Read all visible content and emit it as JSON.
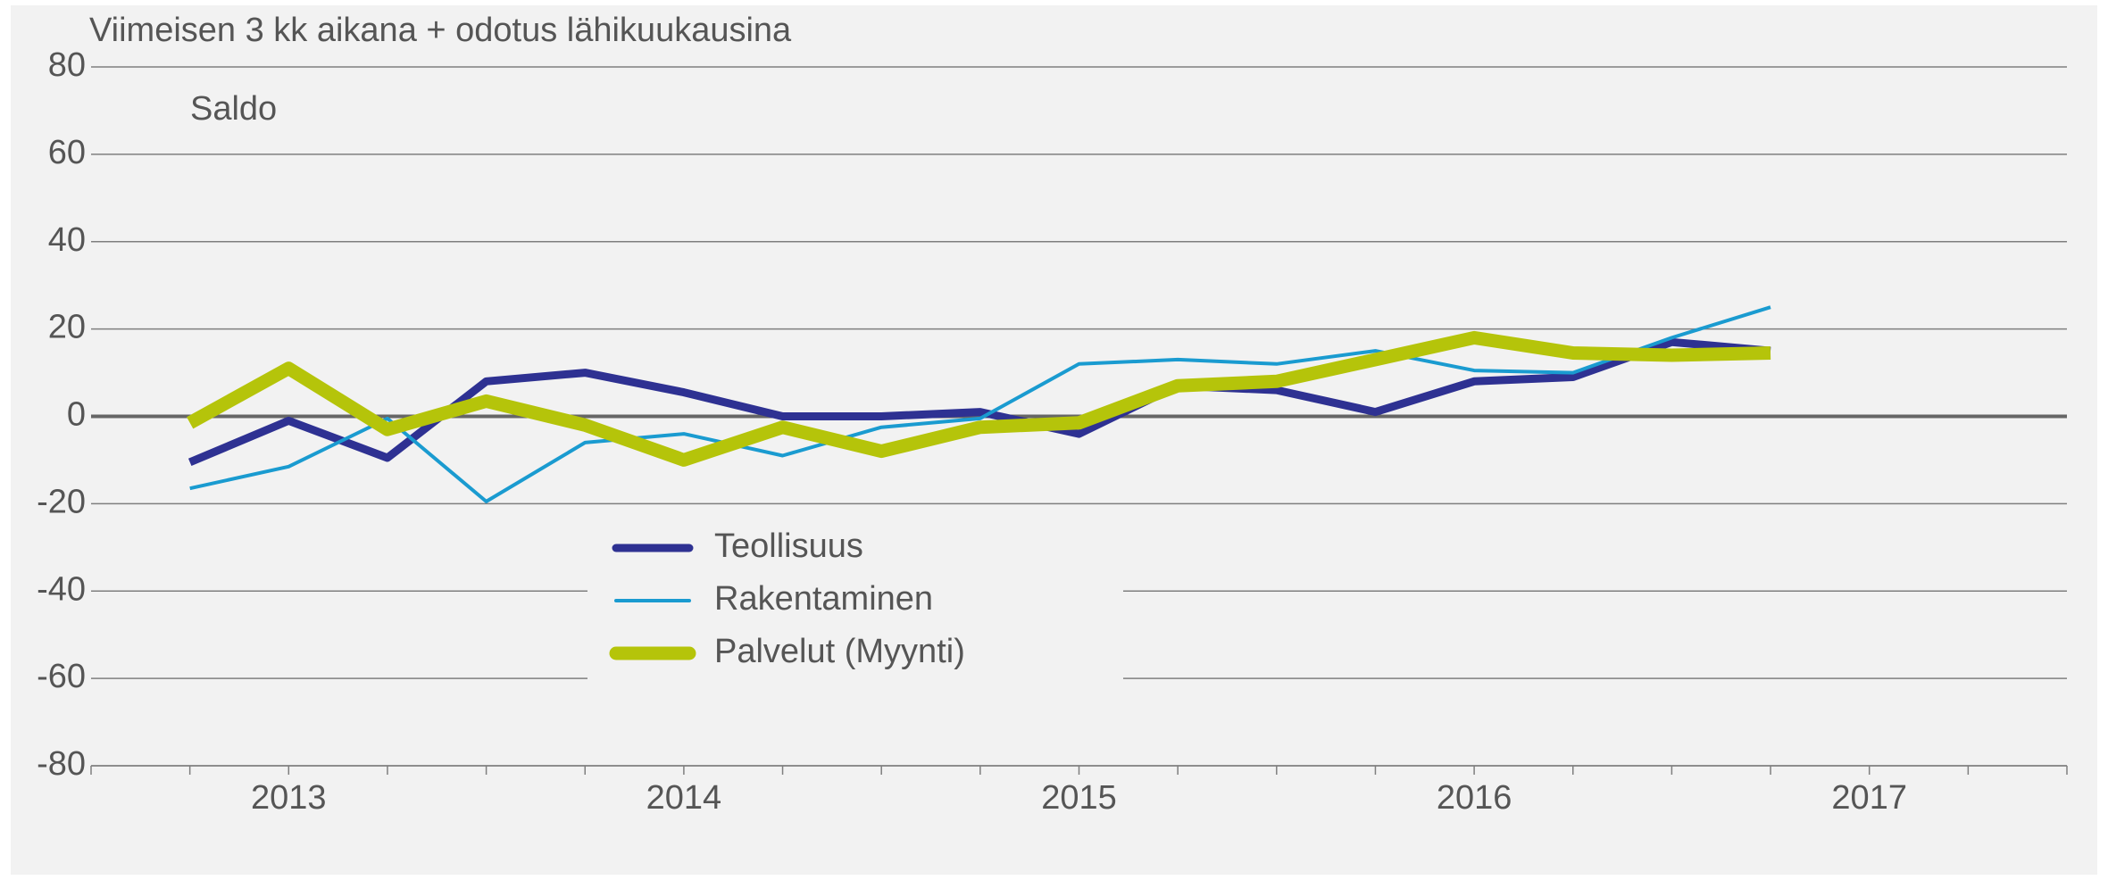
{
  "chart_data": {
    "type": "line",
    "title": "Viimeisen 3 kk aikana + odotus lähikuukausina",
    "y_label": "Saldo",
    "x": [
      2013.25,
      2013.5,
      2013.75,
      2014.0,
      2014.25,
      2014.5,
      2014.75,
      2015.0,
      2015.25,
      2015.5,
      2015.75,
      2016.0,
      2016.25,
      2016.5,
      2016.75,
      2017.0,
      2017.25
    ],
    "xlim": [
      2013,
      2018
    ],
    "xticks": [
      {
        "value": 2013.5,
        "label": "2013"
      },
      {
        "value": 2014.5,
        "label": "2014"
      },
      {
        "value": 2015.5,
        "label": "2015"
      },
      {
        "value": 2016.5,
        "label": "2016"
      },
      {
        "value": 2017.5,
        "label": "2017"
      }
    ],
    "xminorticks": [
      2013,
      2013.25,
      2013.5,
      2013.75,
      2014,
      2014.25,
      2014.5,
      2014.75,
      2015,
      2015.25,
      2015.5,
      2015.75,
      2016,
      2016.25,
      2016.5,
      2016.75,
      2017,
      2017.25,
      2017.5,
      2017.75,
      2018
    ],
    "ylim": [
      -80,
      80
    ],
    "yticks": [
      -80,
      -60,
      -40,
      -20,
      0,
      20,
      40,
      60,
      80
    ],
    "grid": true,
    "legend_position": "bottom-center",
    "series": [
      {
        "name": "Teollisuus",
        "color": "#2e3192",
        "width": 9,
        "values": [
          -10.5,
          -1,
          -9.5,
          8,
          10,
          5.5,
          0,
          0,
          1,
          -4,
          7,
          6,
          1,
          8,
          9,
          17,
          15
        ]
      },
      {
        "name": "Rakentaminen",
        "color": "#1a9bd0",
        "width": 4,
        "values": [
          -16.5,
          -11.5,
          -0.5,
          -19.5,
          -6,
          -4,
          -9,
          -2.5,
          -0.5,
          12,
          13,
          12,
          15,
          10.5,
          10,
          18,
          25
        ]
      },
      {
        "name": "Palvelut (Myynti)",
        "color": "#b5c40a",
        "width": 15,
        "values": [
          -1.5,
          11,
          -3,
          3.5,
          -2,
          -10,
          -2.5,
          -8,
          -2.5,
          -1.5,
          7,
          8,
          13,
          18,
          14.5,
          14,
          14.5
        ]
      }
    ]
  }
}
